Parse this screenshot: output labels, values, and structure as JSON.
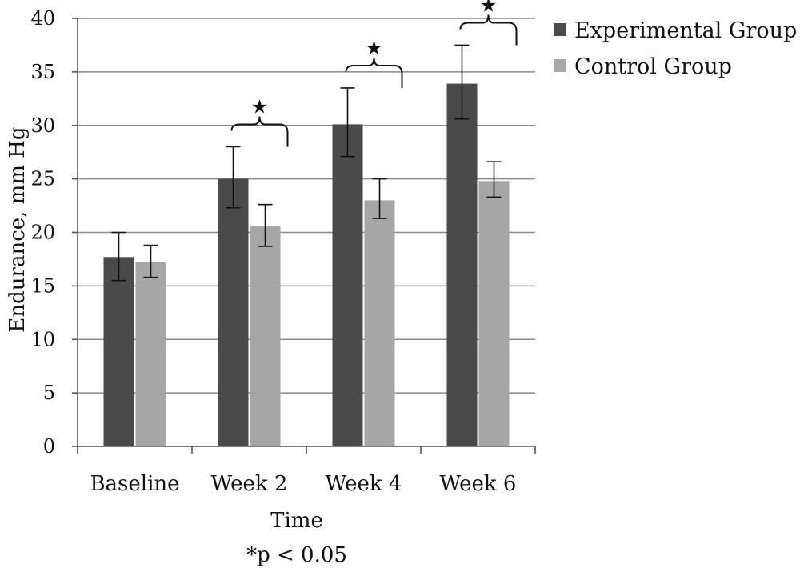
{
  "chart_data": {
    "type": "bar",
    "title": "",
    "xlabel": "Time",
    "ylabel": "Endurance, mm Hg",
    "note": "*p < 0.05",
    "categories": [
      "Baseline",
      "Week 2",
      "Week 4",
      "Week 6"
    ],
    "yticks": [
      "0",
      "5",
      "10",
      "15",
      "20",
      "25",
      "30",
      "35",
      "40"
    ],
    "ylim": [
      0,
      40
    ],
    "grid": true,
    "legend_position": "right",
    "series": [
      {
        "name": "Experimental Group",
        "color": "#4a4a4a",
        "values": [
          17.7,
          25.0,
          30.1,
          33.9
        ],
        "error_low": [
          15.5,
          22.3,
          27.1,
          30.6
        ],
        "error_high": [
          20.0,
          28.0,
          33.5,
          37.5
        ]
      },
      {
        "name": "Control Group",
        "color": "#a6a6a6",
        "values": [
          17.2,
          20.6,
          23.0,
          24.8
        ],
        "error_low": [
          15.8,
          18.7,
          21.3,
          23.3
        ],
        "error_high": [
          18.8,
          22.6,
          25.0,
          26.6
        ]
      }
    ],
    "significance": [
      {
        "category": "Week 2",
        "symbol": "★"
      },
      {
        "category": "Week 4",
        "symbol": "★"
      },
      {
        "category": "Week 6",
        "symbol": "★"
      }
    ]
  }
}
